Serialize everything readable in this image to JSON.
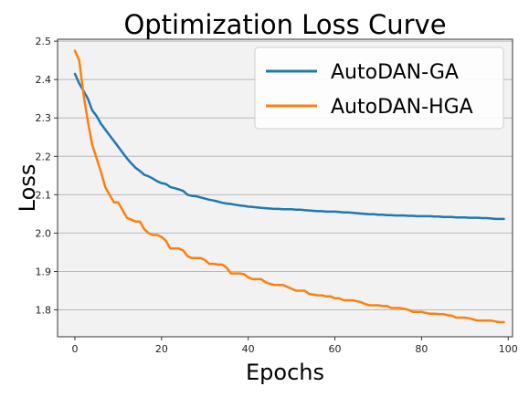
{
  "chart_data": {
    "type": "line",
    "title": "Optimization Loss Curve",
    "xlabel": "Epochs",
    "ylabel": "Loss",
    "xlim": [
      -4,
      101
    ],
    "ylim": [
      1.73,
      2.505
    ],
    "xticks": [
      0,
      20,
      40,
      60,
      80,
      100
    ],
    "yticks": [
      1.8,
      1.9,
      2.0,
      2.1,
      2.2,
      2.3,
      2.4,
      2.5
    ],
    "grid": "horizontal",
    "background": "#f2f2f2",
    "legend_position": "top-right",
    "series": [
      {
        "name": "AutoDAN-GA",
        "color": "#1f77b4",
        "x": [
          0,
          1,
          2,
          3,
          4,
          5,
          6,
          7,
          8,
          9,
          10,
          11,
          12,
          13,
          14,
          15,
          16,
          17,
          18,
          19,
          20,
          21,
          22,
          23,
          24,
          25,
          26,
          27,
          28,
          29,
          30,
          31,
          32,
          33,
          34,
          35,
          36,
          37,
          38,
          39,
          40,
          41,
          42,
          43,
          44,
          45,
          46,
          47,
          48,
          49,
          50,
          51,
          52,
          53,
          54,
          55,
          56,
          57,
          58,
          59,
          60,
          61,
          62,
          63,
          64,
          65,
          66,
          67,
          68,
          69,
          70,
          71,
          72,
          73,
          74,
          75,
          76,
          77,
          78,
          79,
          80,
          81,
          82,
          83,
          84,
          85,
          86,
          87,
          88,
          89,
          90,
          91,
          92,
          93,
          94,
          95,
          96,
          97,
          98,
          99
        ],
        "y": [
          2.415,
          2.39,
          2.37,
          2.35,
          2.32,
          2.305,
          2.285,
          2.27,
          2.255,
          2.24,
          2.225,
          2.21,
          2.195,
          2.182,
          2.17,
          2.162,
          2.152,
          2.148,
          2.142,
          2.135,
          2.13,
          2.128,
          2.12,
          2.117,
          2.114,
          2.11,
          2.1,
          2.097,
          2.096,
          2.093,
          2.09,
          2.087,
          2.085,
          2.082,
          2.079,
          2.077,
          2.076,
          2.074,
          2.072,
          2.071,
          2.069,
          2.068,
          2.067,
          2.066,
          2.065,
          2.064,
          2.063,
          2.063,
          2.062,
          2.062,
          2.062,
          2.061,
          2.061,
          2.06,
          2.059,
          2.058,
          2.057,
          2.057,
          2.056,
          2.056,
          2.056,
          2.055,
          2.054,
          2.054,
          2.053,
          2.052,
          2.051,
          2.05,
          2.049,
          2.049,
          2.048,
          2.048,
          2.047,
          2.047,
          2.046,
          2.046,
          2.046,
          2.045,
          2.045,
          2.044,
          2.044,
          2.044,
          2.044,
          2.043,
          2.043,
          2.042,
          2.042,
          2.042,
          2.041,
          2.041,
          2.041,
          2.04,
          2.04,
          2.04,
          2.039,
          2.039,
          2.038,
          2.037,
          2.037,
          2.037
        ]
      },
      {
        "name": "AutoDAN-HGA",
        "color": "#ff7f0e",
        "x": [
          0,
          1,
          2,
          3,
          4,
          5,
          6,
          7,
          8,
          9,
          10,
          11,
          12,
          13,
          14,
          15,
          16,
          17,
          18,
          19,
          20,
          21,
          22,
          23,
          24,
          25,
          26,
          27,
          28,
          29,
          30,
          31,
          32,
          33,
          34,
          35,
          36,
          37,
          38,
          39,
          40,
          41,
          42,
          43,
          44,
          45,
          46,
          47,
          48,
          49,
          50,
          51,
          52,
          53,
          54,
          55,
          56,
          57,
          58,
          59,
          60,
          61,
          62,
          63,
          64,
          65,
          66,
          67,
          68,
          69,
          70,
          71,
          72,
          73,
          74,
          75,
          76,
          77,
          78,
          79,
          80,
          81,
          82,
          83,
          84,
          85,
          86,
          87,
          88,
          89,
          90,
          91,
          92,
          93,
          94,
          95,
          96,
          97,
          98,
          99
        ],
        "y": [
          2.475,
          2.45,
          2.36,
          2.29,
          2.23,
          2.195,
          2.16,
          2.12,
          2.1,
          2.08,
          2.08,
          2.06,
          2.04,
          2.035,
          2.03,
          2.03,
          2.01,
          2.0,
          1.995,
          1.995,
          1.99,
          1.98,
          1.96,
          1.96,
          1.96,
          1.955,
          1.94,
          1.935,
          1.935,
          1.935,
          1.93,
          1.92,
          1.92,
          1.918,
          1.918,
          1.91,
          1.895,
          1.895,
          1.895,
          1.893,
          1.885,
          1.88,
          1.88,
          1.88,
          1.872,
          1.868,
          1.865,
          1.865,
          1.865,
          1.86,
          1.855,
          1.85,
          1.85,
          1.85,
          1.842,
          1.84,
          1.838,
          1.838,
          1.835,
          1.835,
          1.83,
          1.83,
          1.825,
          1.825,
          1.825,
          1.823,
          1.82,
          1.815,
          1.812,
          1.812,
          1.812,
          1.81,
          1.81,
          1.805,
          1.805,
          1.805,
          1.803,
          1.8,
          1.795,
          1.795,
          1.795,
          1.792,
          1.79,
          1.79,
          1.789,
          1.789,
          1.786,
          1.785,
          1.78,
          1.78,
          1.78,
          1.778,
          1.775,
          1.772,
          1.772,
          1.772,
          1.772,
          1.77,
          1.768,
          1.768
        ]
      }
    ]
  }
}
